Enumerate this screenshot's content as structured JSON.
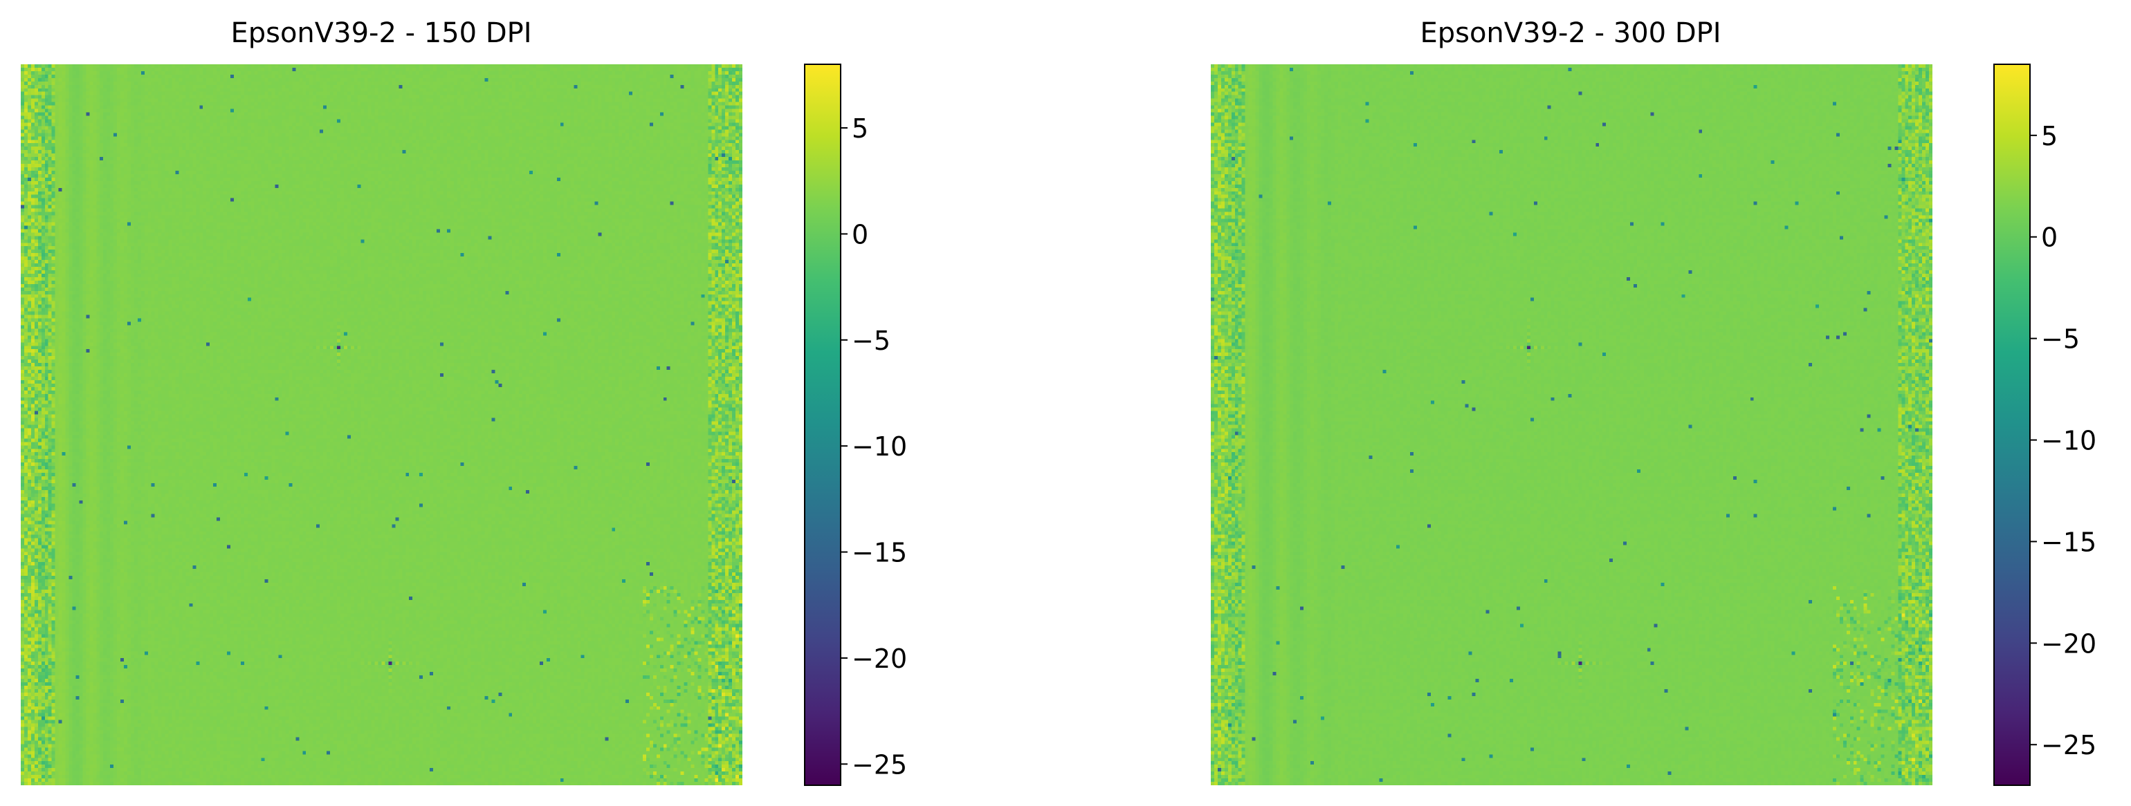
{
  "chart_data": [
    {
      "type": "heatmap",
      "title": "EpsonV39-2 - 150 DPI",
      "colormap": "viridis",
      "axes_visible": false,
      "colorbar": {
        "range": [
          -26,
          8
        ],
        "ticks": [
          5,
          0,
          -5,
          -10,
          -15,
          -20,
          -25
        ],
        "tick_labels": [
          "5",
          "0",
          "−5",
          "−10",
          "−15",
          "−20",
          "−25"
        ]
      },
      "grid_resolution": [
        210,
        210
      ],
      "background_value": 1.5,
      "features": {
        "left_edge_noise_columns": 10,
        "right_edge_noise_columns": 10,
        "vertical_bands_left": true,
        "bright_spot_centers_fraction": [
          [
            0.44,
            0.39
          ],
          [
            0.51,
            0.83
          ]
        ],
        "scattered_dark_pixels": true
      }
    },
    {
      "type": "heatmap",
      "title": "EpsonV39-2 - 300 DPI",
      "colormap": "viridis",
      "axes_visible": false,
      "colorbar": {
        "range": [
          -27,
          8.5
        ],
        "ticks": [
          5,
          0,
          -5,
          -10,
          -15,
          -20,
          -25
        ],
        "tick_labels": [
          "5",
          "0",
          "−5",
          "−10",
          "−15",
          "−20",
          "−25"
        ]
      },
      "grid_resolution": [
        210,
        210
      ],
      "background_value": 1.5,
      "features": {
        "left_edge_noise_columns": 10,
        "right_edge_noise_columns": 10,
        "vertical_bands_left": true,
        "bright_spot_centers_fraction": [
          [
            0.44,
            0.39
          ],
          [
            0.51,
            0.83
          ]
        ],
        "scattered_dark_pixels": true
      }
    }
  ]
}
